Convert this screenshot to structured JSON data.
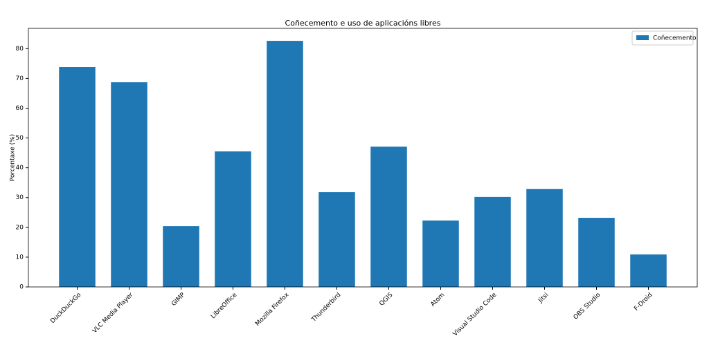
{
  "chart_data": {
    "type": "bar",
    "title": "Coñecemento e uso de aplicacións libres",
    "ylabel": "Porcentaxe (%)",
    "categories": [
      "DuckDuckGo",
      "VLC Media Player",
      "GIMP",
      "LibreOffice",
      "Mozilla Firefox",
      "Thunderbird",
      "QGIS",
      "Atom",
      "Visual Studio Code",
      "Jitsi",
      "OBS Studio",
      "F-Droid"
    ],
    "series": [
      {
        "name": "Coñecemento",
        "color": "#1f77b4",
        "values": [
          73.8,
          68.7,
          20.4,
          45.5,
          82.6,
          31.8,
          47.1,
          22.3,
          30.2,
          32.9,
          23.2,
          10.9
        ]
      }
    ],
    "ylim": [
      0,
      86.8
    ],
    "yticks": [
      0,
      10,
      20,
      30,
      40,
      50,
      60,
      70,
      80
    ],
    "legend": "upper right"
  }
}
